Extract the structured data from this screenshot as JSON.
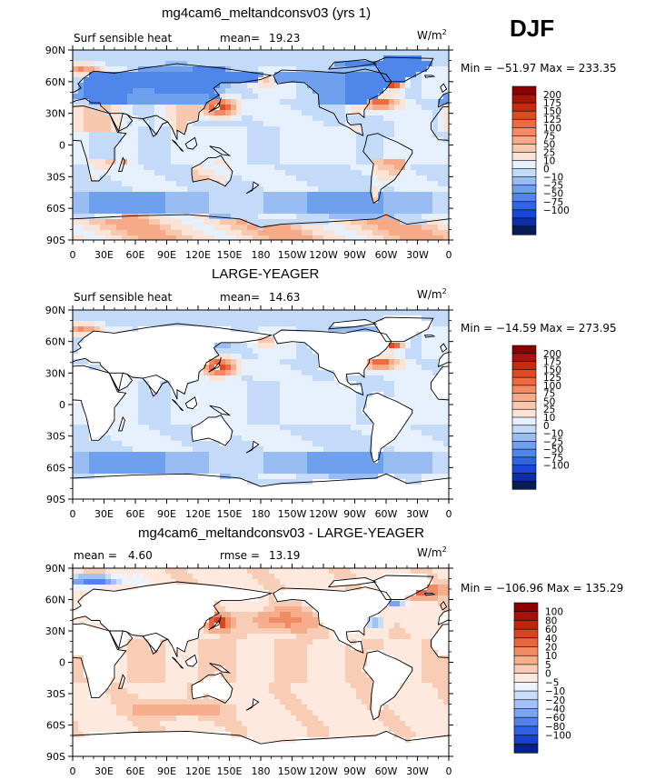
{
  "season": "DJF",
  "lon_ticks": [
    "0",
    "30E",
    "60E",
    "90E",
    "120E",
    "150E",
    "180",
    "150W",
    "120W",
    "90W",
    "60W",
    "30W",
    "0"
  ],
  "lat_ticks": [
    "90N",
    "60N",
    "30N",
    "0",
    "30S",
    "60S",
    "90S"
  ],
  "palette_abs": [
    "#081d58",
    "#0c2fa8",
    "#1846d8",
    "#2f66e0",
    "#4f86ea",
    "#6fa0ee",
    "#98bdf3",
    "#c3dbf8",
    "#e6f1fd",
    "#fbe4d6",
    "#f8c8ae",
    "#f6aa88",
    "#f38a63",
    "#ee6a40",
    "#e04a22",
    "#c72a10",
    "#a81508",
    "#8b0000"
  ],
  "palette_diff": [
    "#0a1f8f",
    "#1a3fcf",
    "#2e5fe6",
    "#5283ec",
    "#7aa3f0",
    "#a2c2f5",
    "#c9dcf9",
    "#eef4fe",
    "#fde9dd",
    "#f9cdb5",
    "#f5ad8c",
    "#f08b64",
    "#e8653e",
    "#d94222",
    "#c2230e",
    "#a5100a",
    "#8b0000"
  ],
  "chart_data": [
    {
      "type": "heatmap",
      "title": "mg4cam6_meltandconsv03 (yrs 1)",
      "left_label": "Surf sensible heat",
      "stat_label": "mean=",
      "stat_value": "19.23",
      "units": "W/m",
      "units_sup": "2",
      "minmax": "Min = −51.97 Max = 233.35",
      "colorbar_labels": [
        "200",
        "175",
        "150",
        "125",
        "100",
        "75",
        "50",
        "25",
        "10",
        "0",
        "−10",
        "−25",
        "−50",
        "−75",
        "−100"
      ],
      "x_range": [
        0,
        360
      ],
      "y_range": [
        -90,
        90
      ],
      "min": -51.97,
      "max": 233.35,
      "mean": 19.23
    },
    {
      "type": "heatmap",
      "title": "LARGE-YEAGER",
      "left_label": "Surf sensible heat",
      "stat_label": "mean=",
      "stat_value": "14.63",
      "units": "W/m",
      "units_sup": "2",
      "minmax": "Min = −14.59 Max = 273.95",
      "colorbar_labels": [
        "200",
        "175",
        "150",
        "125",
        "100",
        "75",
        "50",
        "25",
        "10",
        "0",
        "−10",
        "−25",
        "−50",
        "−75",
        "−100"
      ],
      "x_range": [
        0,
        360
      ],
      "y_range": [
        -90,
        90
      ],
      "min": -14.59,
      "max": 273.95,
      "mean": 14.63
    },
    {
      "type": "heatmap",
      "title": "mg4cam6_meltandconsv03 - LARGE-YEAGER",
      "left_label": "mean =",
      "left_value": "4.60",
      "stat_label": "rmse =",
      "stat_value": "13.19",
      "units": "W/m",
      "units_sup": "2",
      "minmax": "Min = −106.96 Max = 135.29",
      "colorbar_labels": [
        "100",
        "80",
        "60",
        "40",
        "20",
        "10",
        "5",
        "0",
        "−5",
        "−10",
        "−20",
        "−40",
        "−60",
        "−80",
        "−100"
      ],
      "x_range": [
        0,
        360
      ],
      "y_range": [
        -90,
        90
      ],
      "min": -106.96,
      "max": 135.29,
      "mean": 4.6,
      "rmse": 13.19
    }
  ]
}
